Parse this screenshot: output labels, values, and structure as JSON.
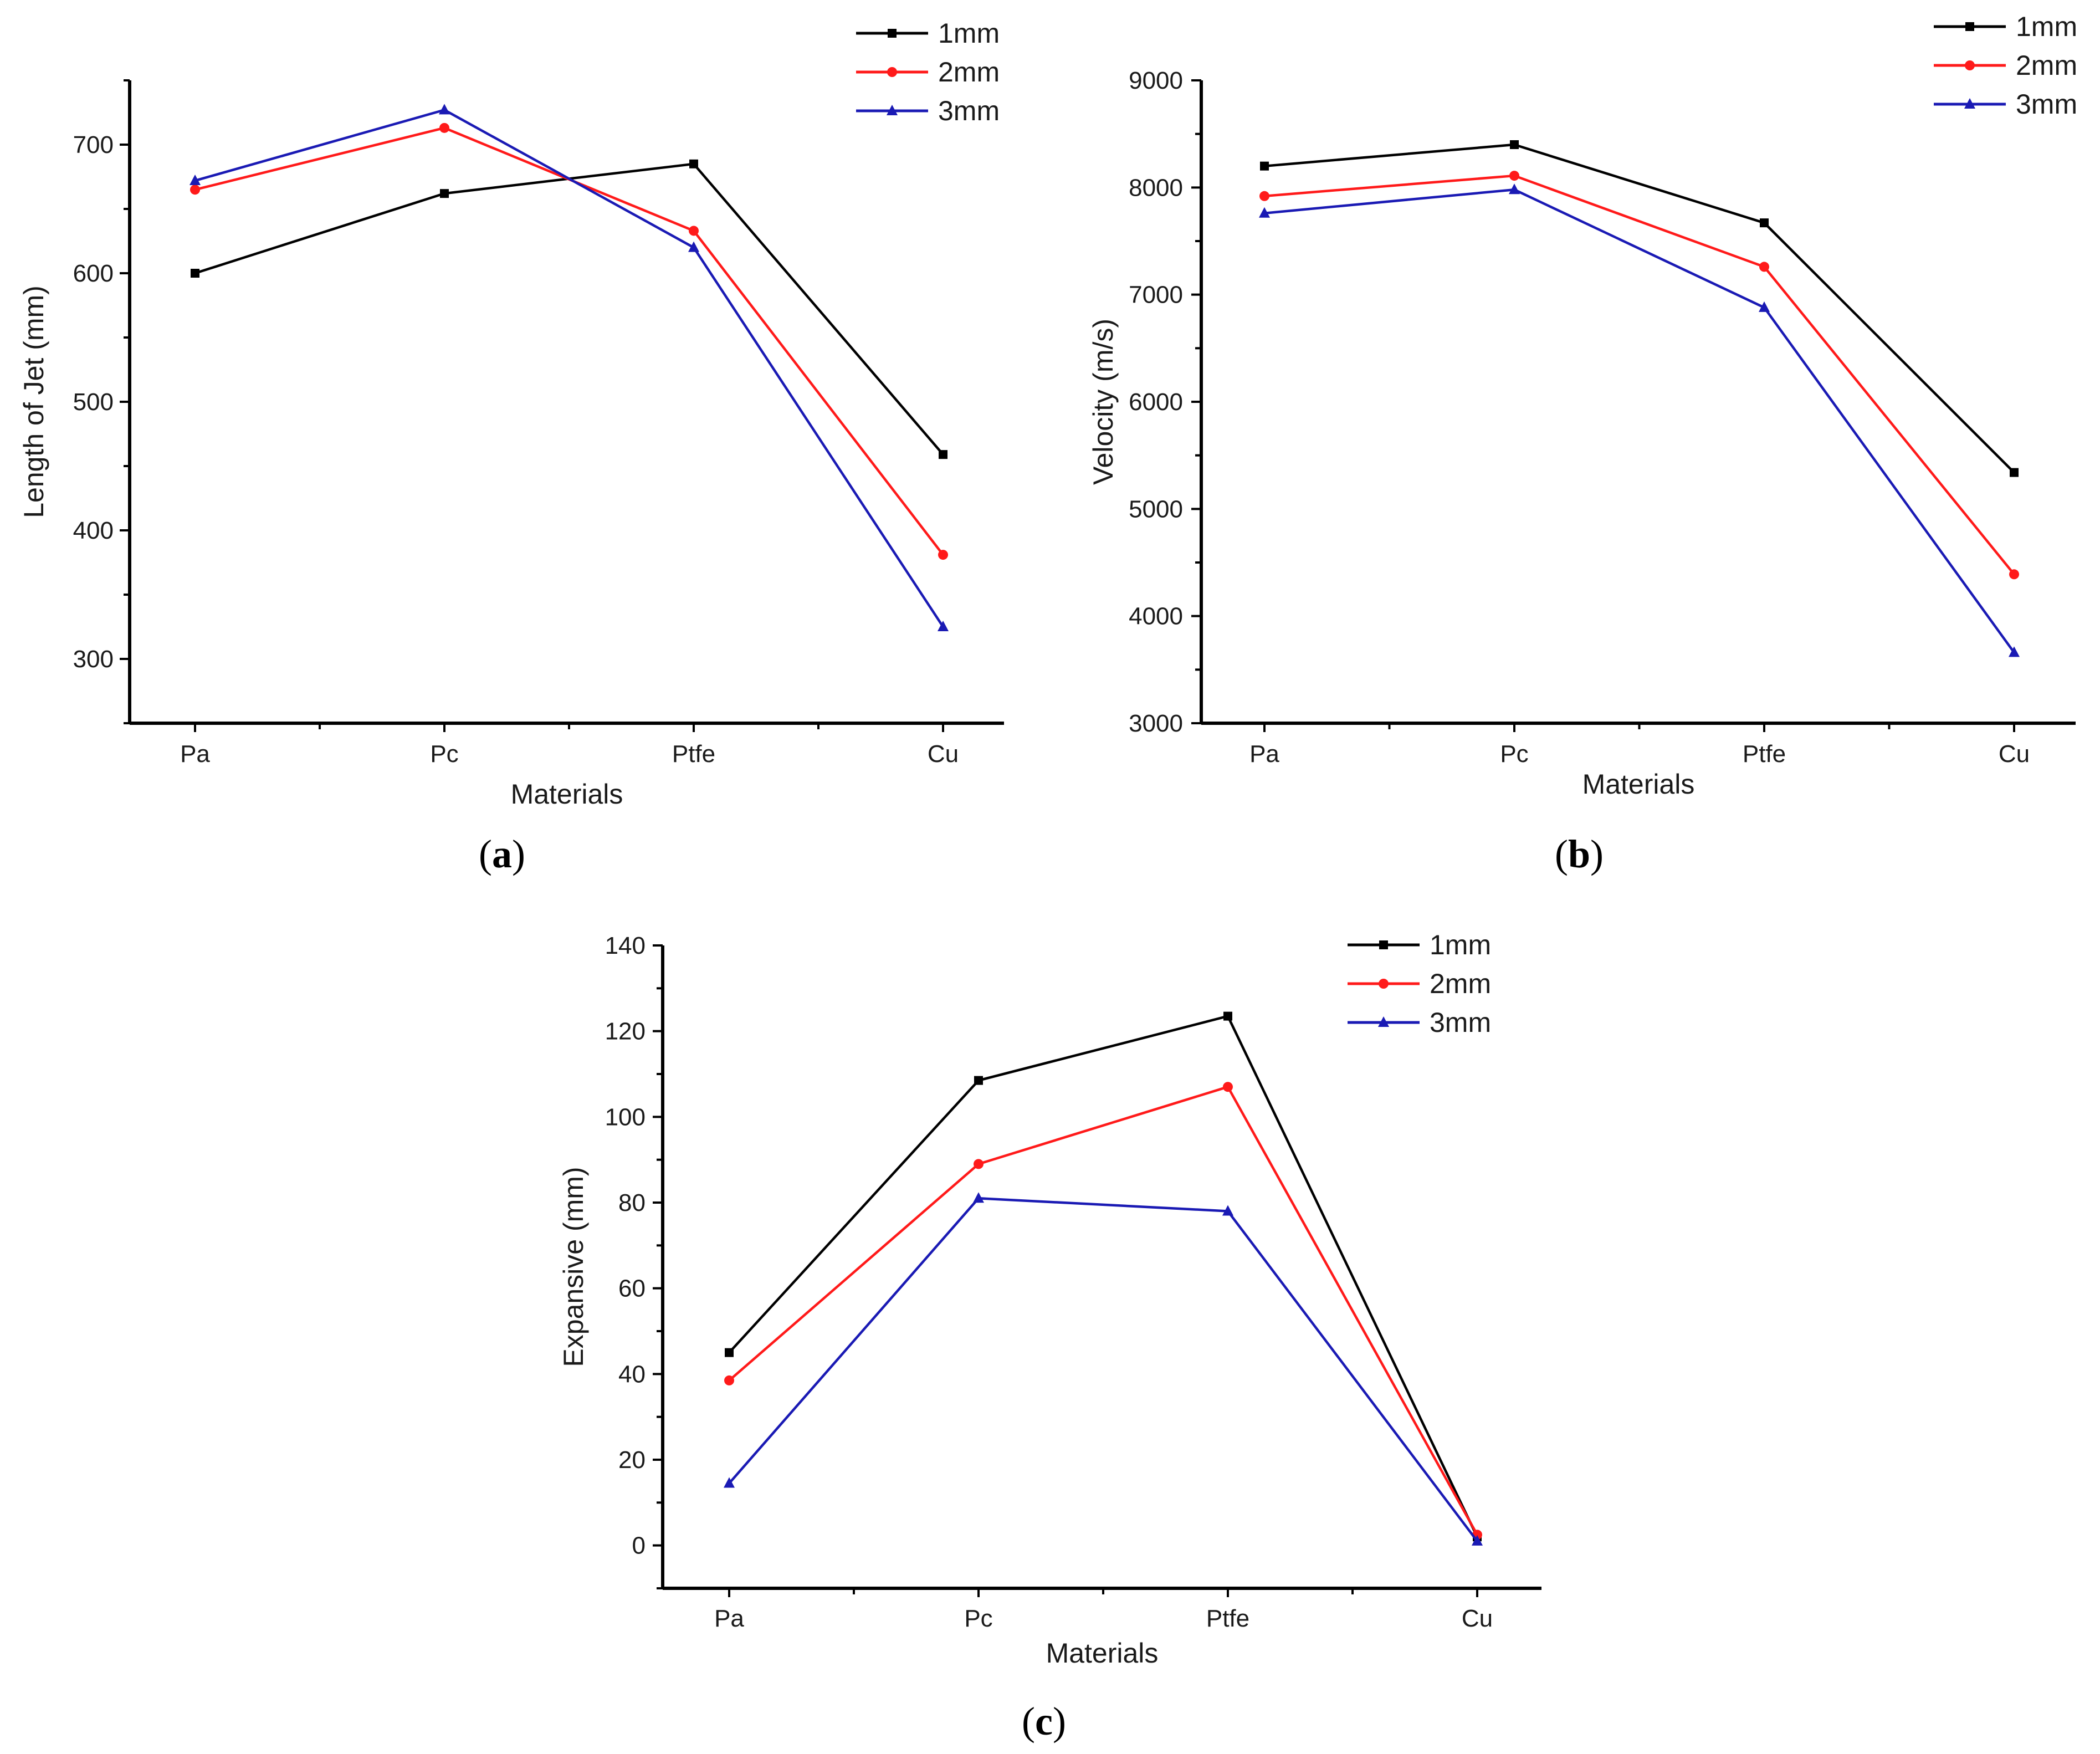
{
  "figure": {
    "colors": {
      "1mm": "#000000",
      "2mm": "#ff1a1a",
      "3mm": "#1a1ab4"
    }
  },
  "chart_data": [
    {
      "id": "a",
      "type": "line",
      "caption_open": "(",
      "caption_letter": "a",
      "caption_close": ")",
      "categories": [
        "Pa",
        "Pc",
        "Ptfe",
        "Cu"
      ],
      "xlabel": "Materials",
      "ylabel": "Length of Jet (mm)",
      "ylim": [
        250,
        750
      ],
      "yticks": [
        300,
        400,
        500,
        600,
        700
      ],
      "ytick_labels": [
        "300",
        "400",
        "500",
        "600",
        "700"
      ],
      "minor_step": 50,
      "legend_position": "top-right",
      "series": [
        {
          "name": "1mm",
          "marker": "square",
          "values": [
            600,
            662,
            685,
            459
          ]
        },
        {
          "name": "2mm",
          "marker": "circle",
          "values": [
            665,
            713,
            633,
            381
          ]
        },
        {
          "name": "3mm",
          "marker": "triangle",
          "values": [
            672,
            727,
            620,
            325
          ]
        }
      ]
    },
    {
      "id": "b",
      "type": "line",
      "caption_open": "(",
      "caption_letter": "b",
      "caption_close": ")",
      "categories": [
        "Pa",
        "Pc",
        "Ptfe",
        "Cu"
      ],
      "xlabel": "Materials",
      "ylabel": "Velocity (m/s)",
      "ylim": [
        3000,
        9000
      ],
      "yticks": [
        3000,
        4000,
        5000,
        6000,
        7000,
        8000,
        9000
      ],
      "ytick_labels": [
        "3000",
        "4000",
        "5000",
        "6000",
        "7000",
        "8000",
        "9000"
      ],
      "minor_step": 500,
      "legend_position": "top-right",
      "series": [
        {
          "name": "1mm",
          "marker": "square",
          "values": [
            8200,
            8400,
            7670,
            5340
          ]
        },
        {
          "name": "2mm",
          "marker": "circle",
          "values": [
            7920,
            8110,
            7260,
            4390
          ]
        },
        {
          "name": "3mm",
          "marker": "triangle",
          "values": [
            7760,
            7980,
            6880,
            3660
          ]
        }
      ]
    },
    {
      "id": "c",
      "type": "line",
      "caption_open": "(",
      "caption_letter": "c",
      "caption_close": ")",
      "categories": [
        "Pa",
        "Pc",
        "Ptfe",
        "Cu"
      ],
      "xlabel": "Materials",
      "ylabel": "Expansive (mm)",
      "ylim": [
        -10,
        140
      ],
      "yticks": [
        0,
        20,
        40,
        60,
        80,
        100,
        120,
        140
      ],
      "ytick_labels": [
        "0",
        "20",
        "40",
        "60",
        "80",
        "100",
        "120",
        "140"
      ],
      "minor_step": 10,
      "legend_position": "top-right",
      "series": [
        {
          "name": "1mm",
          "marker": "square",
          "values": [
            45,
            108.5,
            123.5,
            2
          ]
        },
        {
          "name": "2mm",
          "marker": "circle",
          "values": [
            38.5,
            89,
            107,
            2.5
          ]
        },
        {
          "name": "3mm",
          "marker": "triangle",
          "values": [
            14.5,
            81,
            78,
            1
          ]
        }
      ]
    }
  ]
}
